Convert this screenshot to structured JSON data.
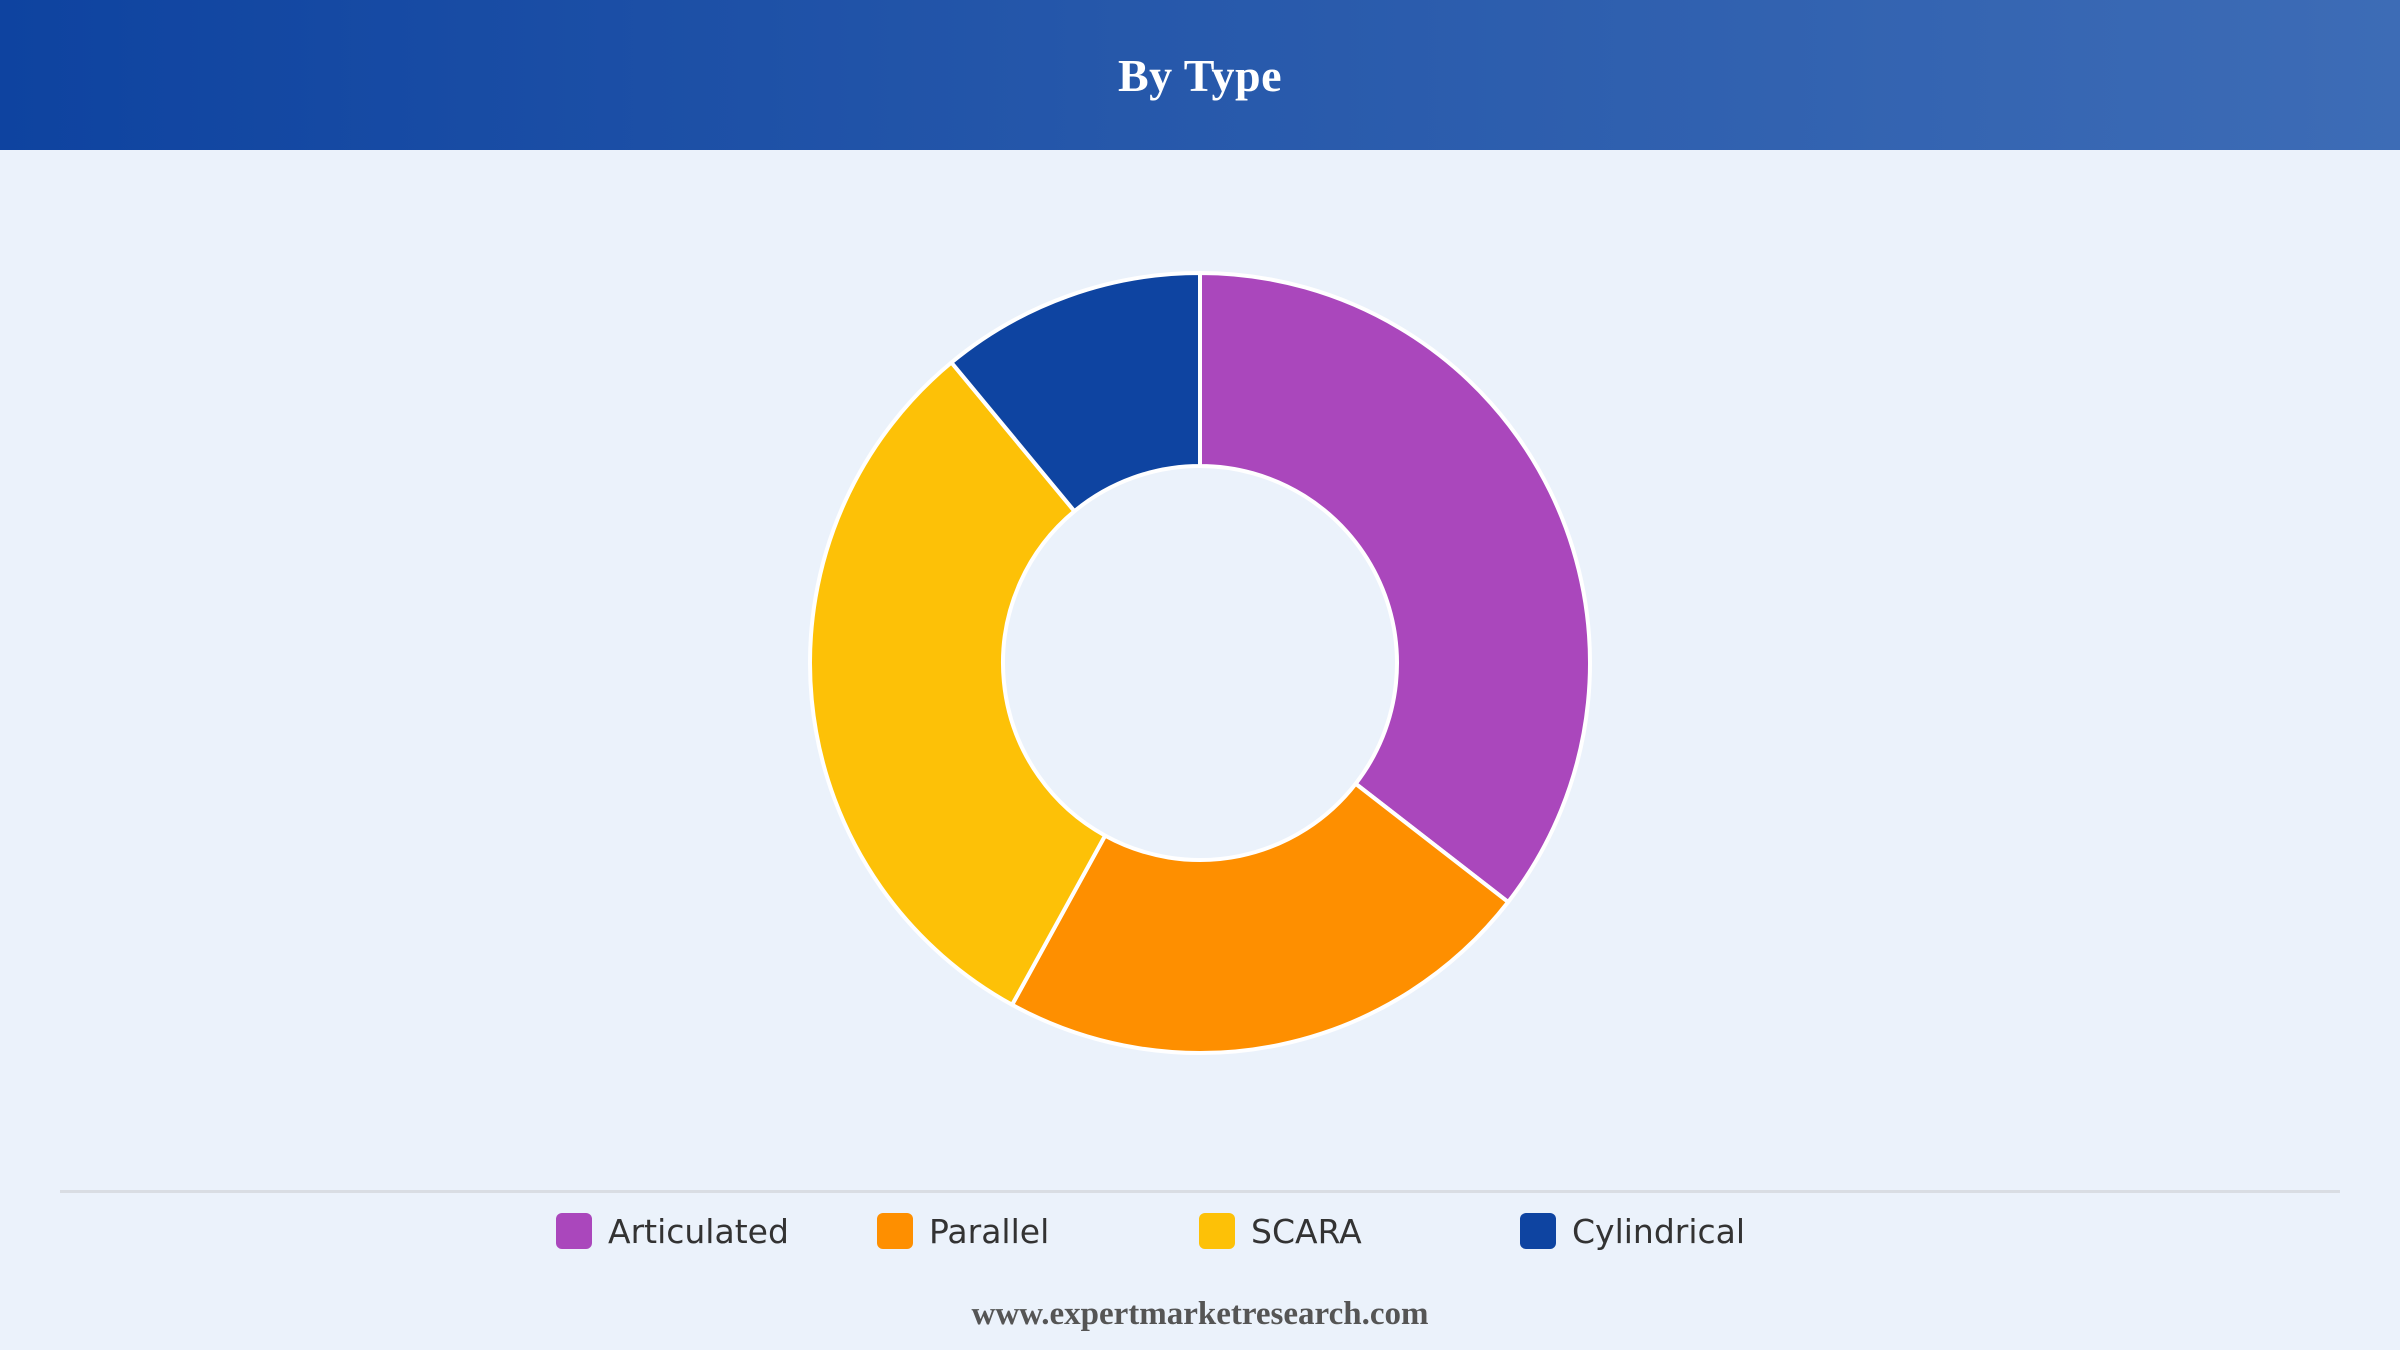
{
  "header": {
    "title": "By Type"
  },
  "chart_data": {
    "type": "pie",
    "donut": true,
    "title": "By Type",
    "categories": [
      "Articulated",
      "Parallel",
      "SCARA",
      "Cylindrical"
    ],
    "values": [
      35.5,
      22.5,
      31,
      11
    ],
    "unit": "%",
    "colors": [
      "#aa47bc",
      "#fe8f00",
      "#fdc107",
      "#0e44a1"
    ],
    "legend_position": "bottom",
    "start_angle_deg": 0,
    "direction": "clockwise"
  },
  "legend": {
    "items": [
      {
        "label": "Articulated",
        "color": "#aa47bc"
      },
      {
        "label": "Parallel",
        "color": "#fe8f00"
      },
      {
        "label": "SCARA",
        "color": "#fdc107"
      },
      {
        "label": "Cylindrical",
        "color": "#0e44a1"
      }
    ]
  },
  "footer": {
    "source": "www.expertmarketresearch.com"
  },
  "theme": {
    "background": "#ebf2fb",
    "header_gradient_start": "#0e43a0",
    "header_gradient_end": "#3d6cb6"
  }
}
